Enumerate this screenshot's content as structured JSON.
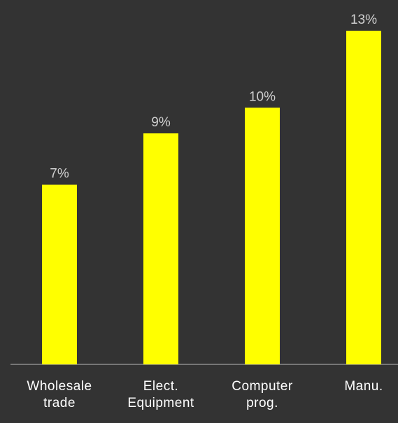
{
  "chart_data": {
    "type": "bar",
    "categories": [
      "Wholesale trade",
      "Elect. Equipment",
      "Computer prog.",
      "Manu."
    ],
    "values": [
      7,
      9,
      10,
      13
    ],
    "value_labels": [
      "7%",
      "9%",
      "10%",
      "13%"
    ],
    "color": "#ffff00"
  }
}
